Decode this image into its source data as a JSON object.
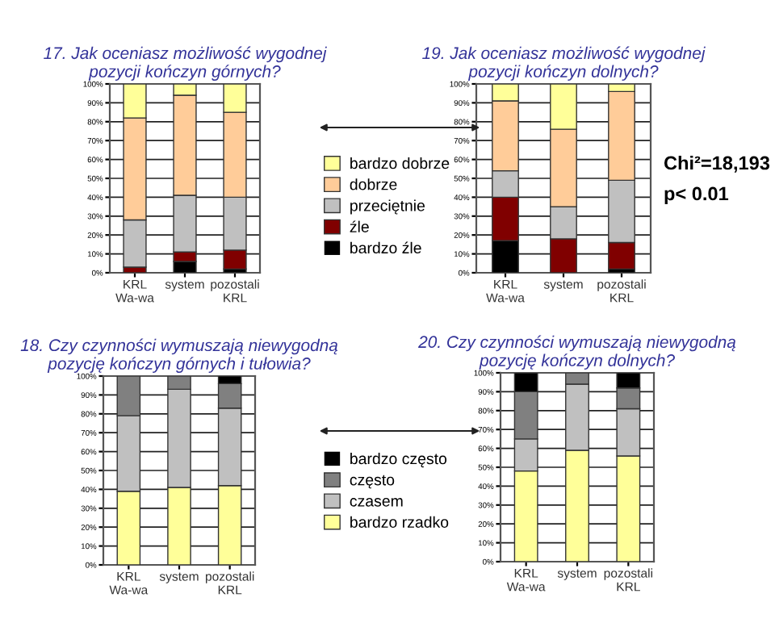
{
  "chart_data": [
    {
      "type": "bar",
      "stacked": true,
      "title": "17. Jak oceniasz możliwość wygodnej\npozycji kończyn górnych?",
      "categories": [
        "KRL\nWa-wa",
        "system",
        "pozostali\nKRL"
      ],
      "legend": "right",
      "grid": "y",
      "ylim": [
        0,
        100
      ],
      "yticks": [
        {
          "value": 0,
          "label": "0%"
        },
        {
          "value": 10,
          "label": "10%"
        },
        {
          "value": 20,
          "label": "20%"
        },
        {
          "value": 30,
          "label": "30%"
        },
        {
          "value": 40,
          "label": "40%"
        },
        {
          "value": 50,
          "label": "50%"
        },
        {
          "value": 60,
          "label": "60%"
        },
        {
          "value": 70,
          "label": "70%"
        },
        {
          "value": 80,
          "label": "80%"
        },
        {
          "value": 90,
          "label": "90%"
        },
        {
          "value": 100,
          "label": "100%"
        }
      ],
      "series": [
        {
          "name": "bardzo źle",
          "color": "#000000",
          "values": [
            0,
            6,
            2
          ]
        },
        {
          "name": "źle",
          "color": "#800000",
          "values": [
            3,
            5,
            10
          ]
        },
        {
          "name": "przeciętnie",
          "color": "#c0c0c0",
          "values": [
            25,
            30,
            28
          ]
        },
        {
          "name": "dobrze",
          "color": "#ffcc99",
          "values": [
            54,
            53,
            45
          ]
        },
        {
          "name": "bardzo dobrze",
          "color": "#ffff99",
          "values": [
            18,
            6,
            15
          ]
        }
      ]
    },
    {
      "type": "bar",
      "stacked": true,
      "title": "19. Jak oceniasz możliwość wygodnej\npozycji kończyn dolnych?",
      "categories": [
        "KRL\nWa-wa",
        "system",
        "pozostali\nKRL"
      ],
      "grid": "y",
      "ylim": [
        0,
        100
      ],
      "yticks": [
        {
          "value": 0,
          "label": "0%"
        },
        {
          "value": 10,
          "label": "10%"
        },
        {
          "value": 20,
          "label": "20%"
        },
        {
          "value": 30,
          "label": "30%"
        },
        {
          "value": 40,
          "label": "40%"
        },
        {
          "value": 50,
          "label": "50%"
        },
        {
          "value": 60,
          "label": "60%"
        },
        {
          "value": 70,
          "label": "70%"
        },
        {
          "value": 80,
          "label": "80%"
        },
        {
          "value": 90,
          "label": "90%"
        },
        {
          "value": 100,
          "label": "100%"
        }
      ],
      "annotations": [
        "Chi²=18,193",
        "p< 0.01"
      ],
      "series": [
        {
          "color": "#000000",
          "values": [
            17,
            0,
            2
          ]
        },
        {
          "color": "#800000",
          "values": [
            23,
            18,
            14
          ]
        },
        {
          "color": "#c0c0c0",
          "values": [
            14,
            17,
            33
          ]
        },
        {
          "color": "#ffcc99",
          "values": [
            37,
            41,
            47
          ]
        },
        {
          "color": "#ffff99",
          "values": [
            9,
            24,
            4
          ]
        }
      ]
    },
    {
      "type": "bar",
      "stacked": true,
      "title": "18. Czy czynności wymuszają niewygodną\npozycję kończyn górnych i tułowia?",
      "categories": [
        "KRL\nWa-wa",
        "system",
        "pozostali\nKRL"
      ],
      "legend": "right",
      "grid": "y",
      "ylim": [
        0,
        100
      ],
      "yticks": [
        {
          "value": 0,
          "label": "0%"
        },
        {
          "value": 10,
          "label": "10%"
        },
        {
          "value": 20,
          "label": "20%"
        },
        {
          "value": 30,
          "label": "30%"
        },
        {
          "value": 40,
          "label": "40%"
        },
        {
          "value": 50,
          "label": "50%"
        },
        {
          "value": 60,
          "label": "60%"
        },
        {
          "value": 70,
          "label": "70%"
        },
        {
          "value": 80,
          "label": "80%"
        },
        {
          "value": 90,
          "label": "90%"
        },
        {
          "value": 100,
          "label": "100%"
        }
      ],
      "series": [
        {
          "name": "bardzo rzadko",
          "color": "#ffff99",
          "values": [
            39,
            41,
            42
          ]
        },
        {
          "name": "czasem",
          "color": "#c0c0c0",
          "values": [
            40,
            52,
            41
          ]
        },
        {
          "name": "często",
          "color": "#808080",
          "values": [
            21,
            7,
            13
          ]
        },
        {
          "name": "bardzo często",
          "color": "#000000",
          "values": [
            0,
            0,
            4
          ]
        }
      ]
    },
    {
      "type": "bar",
      "stacked": true,
      "title": "20. Czy czynności wymuszają niewygodną\npozycję kończyn dolnych?",
      "categories": [
        "KRL\nWa-wa",
        "system",
        "pozostali\nKRL"
      ],
      "grid": "y",
      "ylim": [
        0,
        100
      ],
      "yticks": [
        {
          "value": 0,
          "label": "0%"
        },
        {
          "value": 10,
          "label": "10%"
        },
        {
          "value": 20,
          "label": "20%"
        },
        {
          "value": 30,
          "label": "30%"
        },
        {
          "value": 40,
          "label": "40%"
        },
        {
          "value": 50,
          "label": "50%"
        },
        {
          "value": 60,
          "label": "60%"
        },
        {
          "value": 70,
          "label": "70%"
        },
        {
          "value": 80,
          "label": "80%"
        },
        {
          "value": 90,
          "label": "90%"
        },
        {
          "value": 100,
          "label": "100%"
        }
      ],
      "series": [
        {
          "color": "#ffff99",
          "values": [
            48,
            59,
            56
          ]
        },
        {
          "color": "#c0c0c0",
          "values": [
            17,
            35,
            25
          ]
        },
        {
          "color": "#808080",
          "values": [
            25,
            6,
            11
          ]
        },
        {
          "color": "#000000",
          "values": [
            10,
            0,
            8
          ]
        }
      ]
    }
  ]
}
